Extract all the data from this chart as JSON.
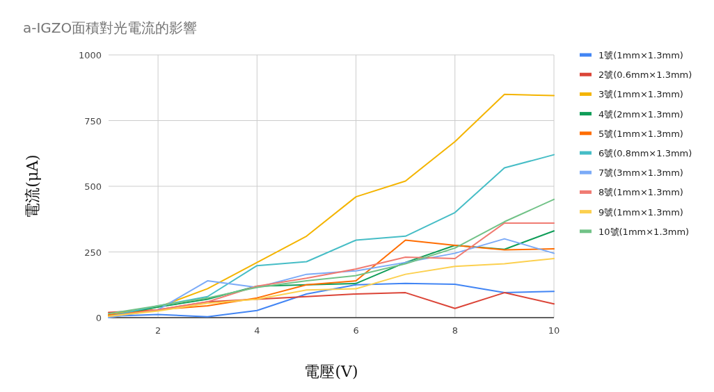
{
  "chart_data": {
    "type": "line",
    "title": "a-IGZO面積對光電流的影響",
    "xlabel": "電壓(V)",
    "ylabel": "電流(μA)",
    "x": [
      1,
      2,
      3,
      4,
      5,
      6,
      7,
      8,
      9,
      10
    ],
    "series": [
      {
        "name": "1號(1mm×1.3mm)",
        "color": "#4285f4",
        "values": [
          5,
          12,
          3,
          27,
          90,
          125,
          130,
          127,
          95,
          100
        ]
      },
      {
        "name": "2號(0.6mm×1.3mm)",
        "color": "#db4437",
        "values": [
          20,
          30,
          60,
          70,
          80,
          90,
          95,
          35,
          95,
          52
        ]
      },
      {
        "name": "3號(1mm×1.3mm)",
        "color": "#f4b400",
        "values": [
          10,
          40,
          110,
          210,
          310,
          460,
          520,
          670,
          850,
          845
        ]
      },
      {
        "name": "4號(2mm×1.3mm)",
        "color": "#0f9d58",
        "values": [
          5,
          40,
          70,
          120,
          125,
          130,
          210,
          275,
          260,
          330
        ]
      },
      {
        "name": "5號(1mm×1.3mm)",
        "color": "#ff6d01",
        "values": [
          10,
          30,
          45,
          75,
          125,
          140,
          295,
          275,
          258,
          262
        ]
      },
      {
        "name": "6號(0.8mm×1.3mm)",
        "color": "#46bdc6",
        "values": [
          5,
          45,
          80,
          198,
          213,
          295,
          310,
          400,
          570,
          620
        ]
      },
      {
        "name": "7號(3mm×1.3mm)",
        "color": "#7baaf7",
        "values": [
          0,
          30,
          140,
          115,
          165,
          178,
          210,
          245,
          300,
          245
        ]
      },
      {
        "name": "8號(1mm×1.3mm)",
        "color": "#f07b72",
        "values": [
          5,
          30,
          60,
          120,
          150,
          185,
          230,
          225,
          360,
          360
        ]
      },
      {
        "name": "9號(1mm×1.3mm)",
        "color": "#fcd04f",
        "values": [
          5,
          25,
          55,
          70,
          105,
          110,
          165,
          195,
          205,
          225
        ]
      },
      {
        "name": "10號(1mm×1.3mm)",
        "color": "#71c287",
        "values": [
          15,
          45,
          75,
          115,
          140,
          160,
          205,
          265,
          365,
          450
        ]
      }
    ],
    "xlim": [
      1,
      10
    ],
    "ylim": [
      0,
      1000
    ],
    "xticks": [
      2,
      4,
      6,
      8,
      10
    ],
    "yticks": [
      0,
      250,
      500,
      750,
      1000
    ],
    "grid": true,
    "legend": "right"
  }
}
